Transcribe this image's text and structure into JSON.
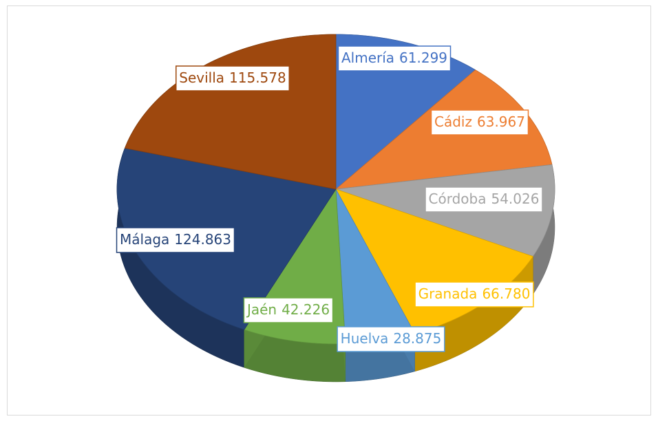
{
  "chart_data": {
    "type": "pie",
    "categories": [
      "Almería",
      "Cádiz",
      "Córdoba",
      "Granada",
      "Huelva",
      "Jaén",
      "Málaga",
      "Sevilla"
    ],
    "values": [
      61299,
      63967,
      54026,
      66780,
      28875,
      42226,
      124863,
      115578
    ],
    "value_labels": [
      "61.299",
      "63.967",
      "54.026",
      "66.780",
      "28.875",
      "42.226",
      "124.863",
      "115.578"
    ],
    "colors": [
      "#4472c4",
      "#ed7d31",
      "#a5a5a5",
      "#ffc000",
      "#5b9bd5",
      "#70ad47",
      "#264478",
      "#9e480e"
    ]
  }
}
